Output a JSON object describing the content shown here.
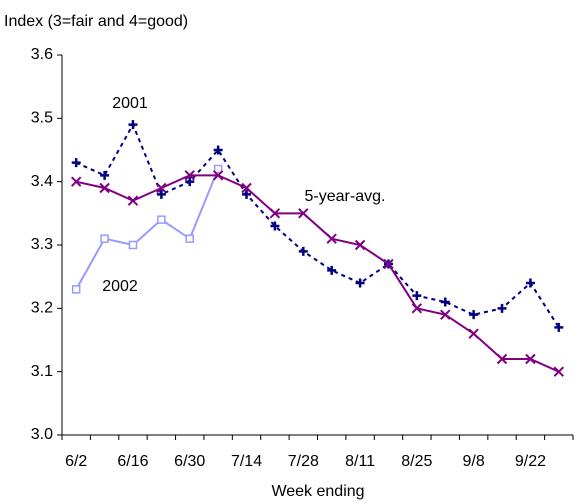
{
  "chart_data": {
    "type": "line",
    "title": "Index (3=fair and 4=good)",
    "x_label": "Week ending",
    "categories": [
      "6/2",
      null,
      "6/16",
      null,
      "6/30",
      null,
      "7/14",
      null,
      "7/28",
      null,
      "8/11",
      null,
      "8/25",
      null,
      "9/8",
      null,
      "9/22",
      null
    ],
    "series": [
      {
        "name": "2001",
        "color": "#000080",
        "marker": "plus",
        "dashed": true,
        "values": [
          3.43,
          3.41,
          3.49,
          3.38,
          3.4,
          3.45,
          3.38,
          3.33,
          3.29,
          3.26,
          3.24,
          3.27,
          3.22,
          3.21,
          3.19,
          3.2,
          3.24,
          3.17
        ]
      },
      {
        "name": "2002",
        "color": "#9999ff",
        "marker": "square",
        "dashed": false,
        "values": [
          3.23,
          3.31,
          3.3,
          3.34,
          3.31,
          3.42,
          null,
          null,
          null,
          null,
          null,
          null,
          null,
          null,
          null,
          null,
          null,
          null
        ]
      },
      {
        "name": "5-year-avg.",
        "color": "#800080",
        "marker": "x",
        "dashed": false,
        "values": [
          3.4,
          3.39,
          3.37,
          3.39,
          3.41,
          3.41,
          3.39,
          3.35,
          3.35,
          3.31,
          3.3,
          3.27,
          3.2,
          3.19,
          3.16,
          3.12,
          3.12,
          3.1
        ]
      }
    ],
    "ylim": [
      3.0,
      3.6
    ],
    "yticks": [
      {
        "value": 3.0,
        "label": "3.0"
      },
      3.1,
      3.2,
      3.3,
      3.4,
      3.5,
      {
        "value": 3.6,
        "label": "3.6"
      }
    ],
    "grid": false
  }
}
